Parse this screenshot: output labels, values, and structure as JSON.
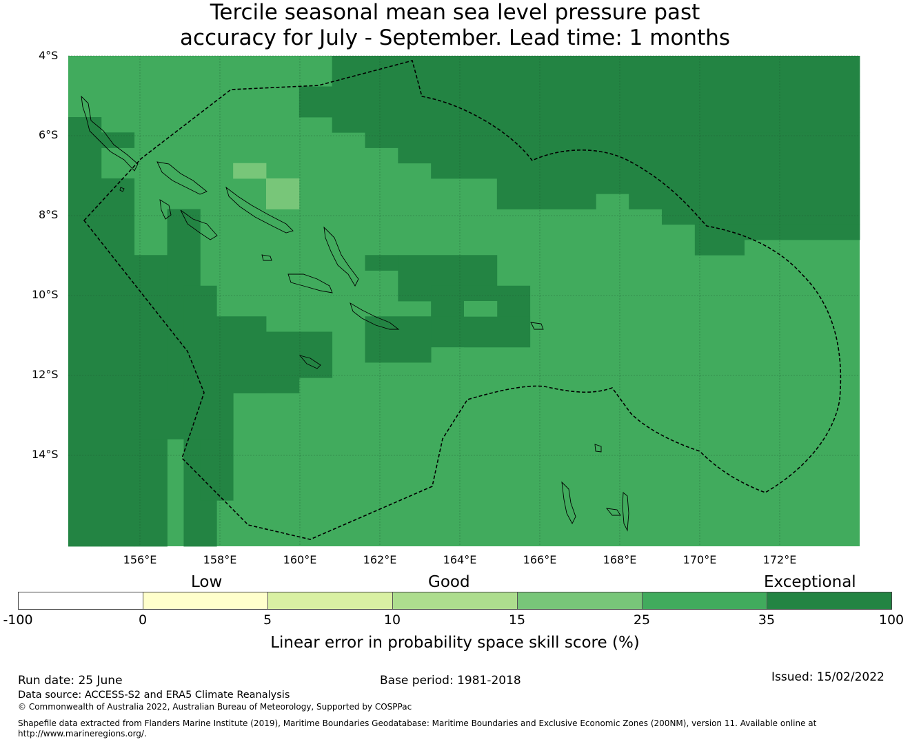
{
  "title": {
    "line1": "Tercile seasonal mean sea level pressure past",
    "line2": "accuracy for July - September. Lead time: 1 months"
  },
  "map": {
    "lon_range": [
      154.2,
      174.0
    ],
    "lat_range": [
      -16.3,
      -4.0
    ],
    "lat_ticks": [
      "4°S",
      "6°S",
      "8°S",
      "10°S",
      "12°S",
      "14°S"
    ],
    "lon_ticks": [
      "156°E",
      "158°E",
      "160°E",
      "162°E",
      "164°E",
      "166°E",
      "168°E",
      "170°E",
      "172°E"
    ],
    "colors": {
      "class_25_35": "#41ab5d",
      "class_35_100": "#238443",
      "class_15_25": "#78c679",
      "coastline": "#000000",
      "eez_boundary": "#000000"
    }
  },
  "legend": {
    "category_labels": [
      "Low",
      "Good",
      "Exceptional"
    ],
    "ticks": [
      "-100",
      "0",
      "5",
      "10",
      "15",
      "25",
      "35",
      "100"
    ],
    "colors": [
      "#ffffff",
      "#ffffcc",
      "#d9f0a3",
      "#addd8e",
      "#78c679",
      "#41ab5d",
      "#238443"
    ],
    "title": "Linear error in probability space skill score (%)"
  },
  "footer": {
    "run_date": "Run date: 25 June",
    "base_period": "Base period: 1981-2018",
    "issued": "Issued: 15/02/2022",
    "data_source": "Data source: ACCESS-S2 and ERA5 Climate Reanalysis",
    "copyright": "© Commonwealth of Australia 2022, Australian Bureau of Meteorology, Supported by COSPPac",
    "shapefile_line1": "Shapefile data extracted from Flanders Marine Institute (2019), Maritime Boundaries Geodatabase: Maritime Boundaries and Exclusive Economic Zones (200NM), version 11. Available online at",
    "shapefile_line2": "http://www.marineregions.org/."
  }
}
